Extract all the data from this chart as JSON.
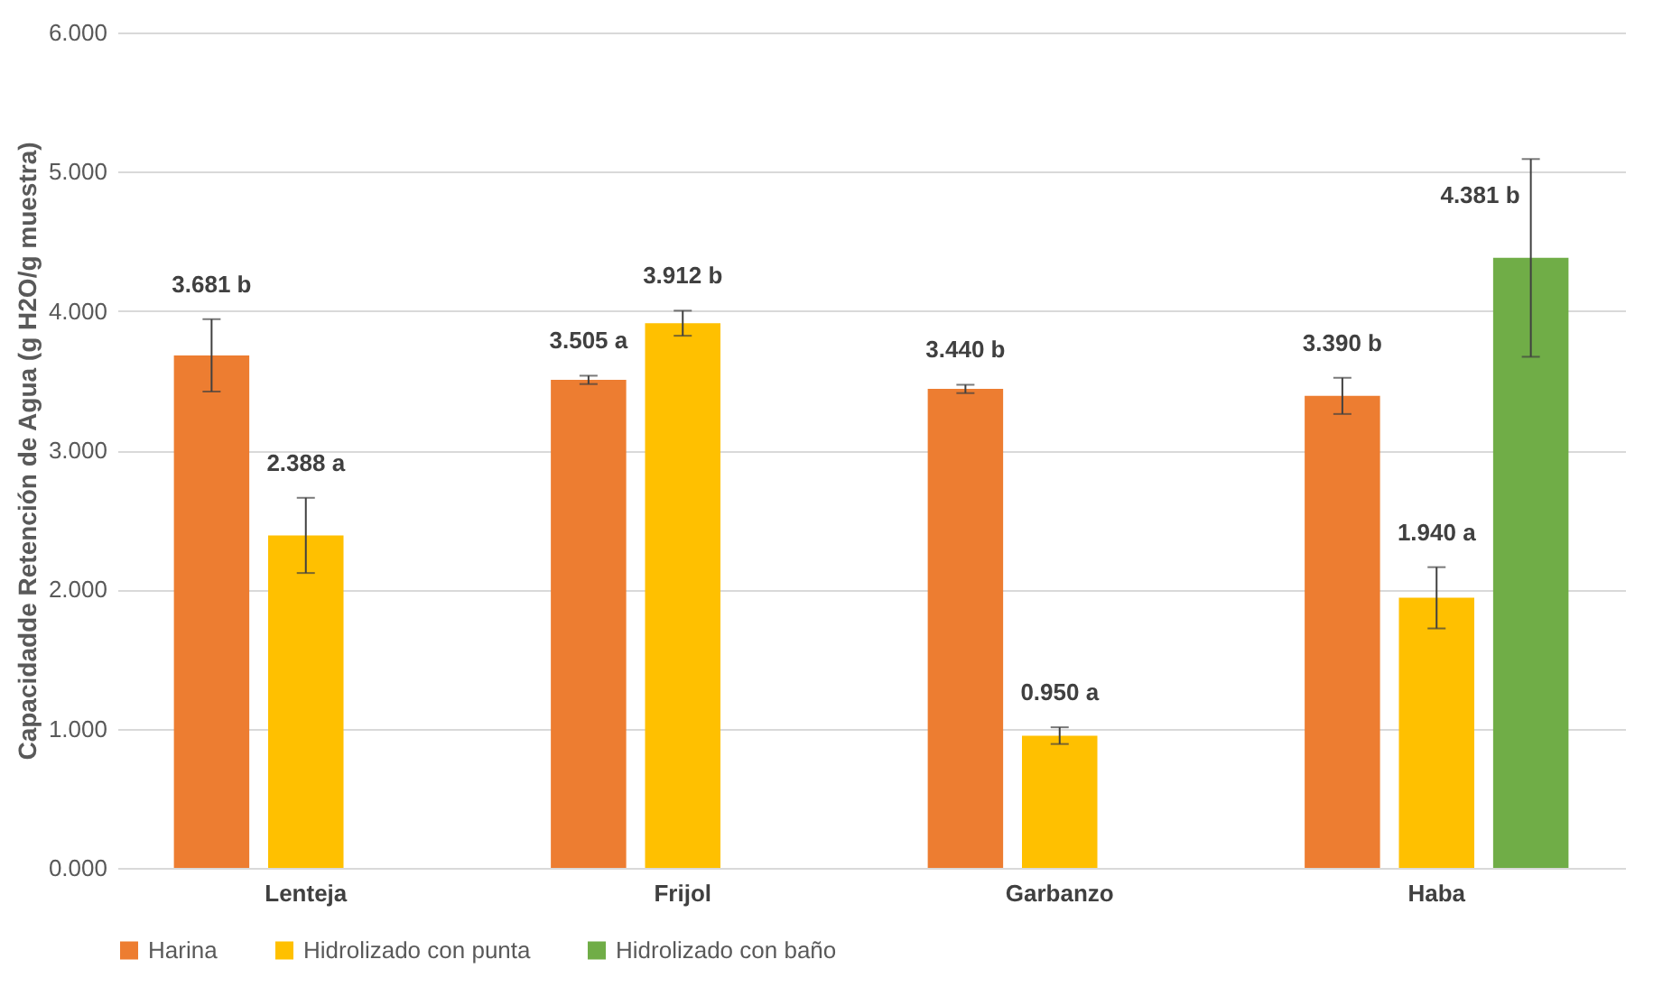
{
  "chart_data": {
    "type": "bar",
    "ylabel": "Capacidadde Retención de Agua (g H2O/g muestra)",
    "categories": [
      "Lenteja",
      "Frijol",
      "Garbanzo",
      "Haba"
    ],
    "series": [
      {
        "name": "Harina",
        "color": "#ed7d31",
        "values": [
          3.681,
          3.505,
          3.44,
          3.39
        ],
        "errors": [
          0.26,
          0.03,
          0.03,
          0.13
        ],
        "value_labels": [
          "3.681 b",
          "3.505 a",
          "3.440 b",
          "3.390 b"
        ]
      },
      {
        "name": "Hidrolizado con punta",
        "color": "#ffc000",
        "values": [
          2.388,
          3.912,
          0.95,
          1.94
        ],
        "errors": [
          0.27,
          0.09,
          0.06,
          0.22
        ],
        "value_labels": [
          "2.388 a",
          "3.912 b",
          "0.950 a",
          "1.940 a"
        ]
      },
      {
        "name": "Hidrolizado con baño",
        "color": "#70ad47",
        "values": [
          null,
          null,
          null,
          4.381
        ],
        "errors": [
          null,
          null,
          null,
          0.71
        ],
        "value_labels": [
          null,
          null,
          null,
          "4.381 b"
        ]
      }
    ],
    "ylim": [
      0,
      6
    ],
    "yticks": [
      {
        "value": 0,
        "label": "0.000"
      },
      {
        "value": 1,
        "label": "1.000"
      },
      {
        "value": 2,
        "label": "2.000"
      },
      {
        "value": 3,
        "label": "3.000"
      },
      {
        "value": 4,
        "label": "4.000"
      },
      {
        "value": 5,
        "label": "5.000"
      },
      {
        "value": 6,
        "label": "6.000"
      }
    ],
    "grid": "y",
    "legend": "bottom"
  }
}
